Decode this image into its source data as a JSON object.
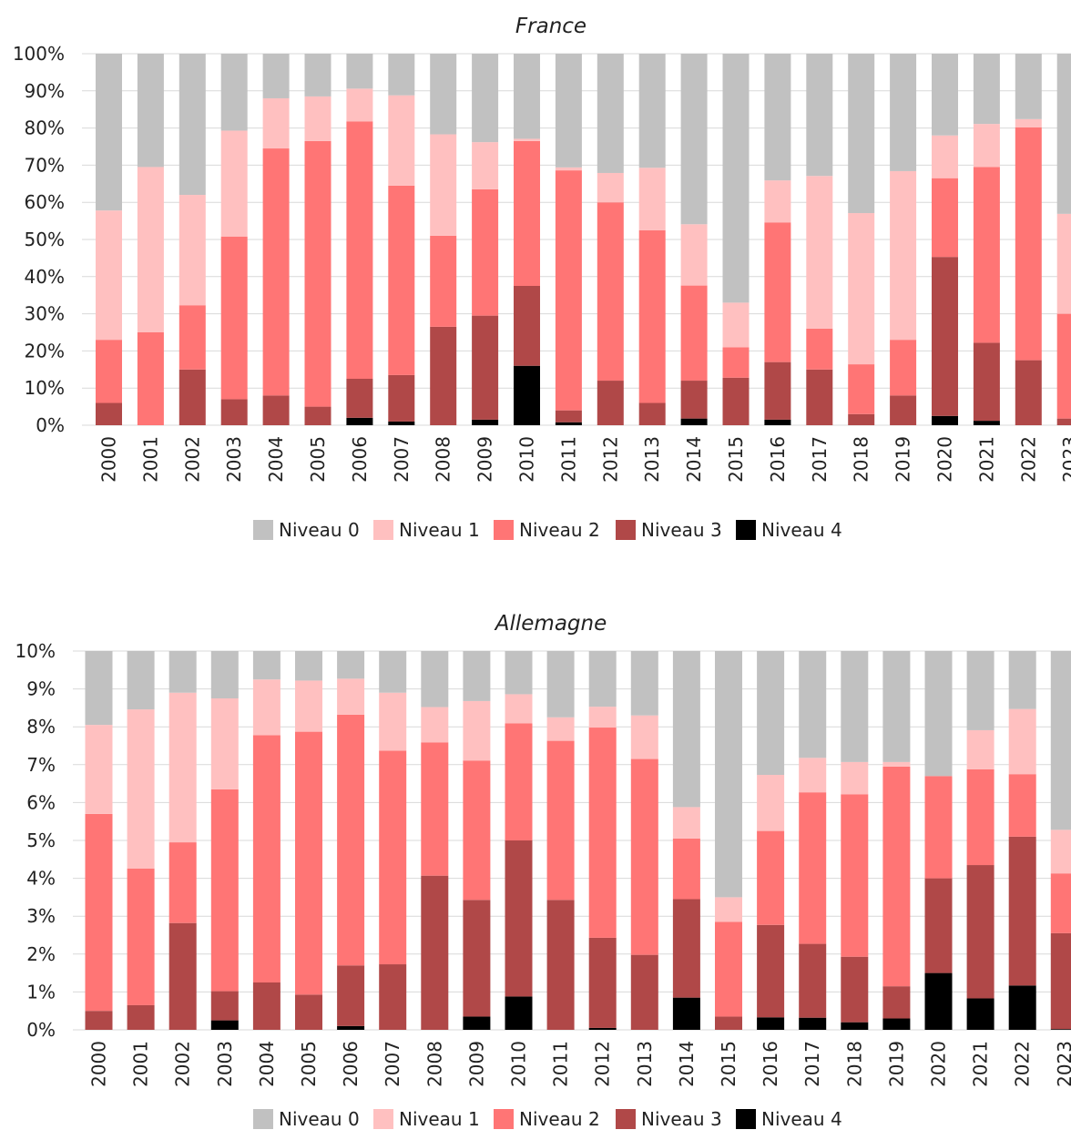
{
  "chart_data": [
    {
      "type": "bar",
      "stacked": true,
      "title": "France",
      "categories": [
        "2000",
        "2001",
        "2002",
        "2003",
        "2004",
        "2005",
        "2006",
        "2007",
        "2008",
        "2009",
        "2010",
        "2011",
        "2012",
        "2013",
        "2014",
        "2015",
        "2016",
        "2017",
        "2018",
        "2019",
        "2020",
        "2021",
        "2022",
        "2023"
      ],
      "ylim": [
        0,
        100
      ],
      "yticks": [
        "0%",
        "10%",
        "20%",
        "30%",
        "40%",
        "50%",
        "60%",
        "70%",
        "80%",
        "90%",
        "100%"
      ],
      "grid": true,
      "legend_position": "bottom",
      "series": [
        {
          "name": "Niveau 4",
          "color": "#000000",
          "values": [
            0,
            0,
            0,
            0,
            0,
            0,
            2,
            1,
            0,
            1.5,
            16,
            0.8,
            0,
            0,
            1.8,
            0,
            1.5,
            0,
            0,
            0,
            2.5,
            1.2,
            0,
            0
          ]
        },
        {
          "name": "Niveau 3",
          "color": "#b04848",
          "values": [
            6,
            0,
            15,
            7,
            8,
            5,
            10.5,
            12.5,
            26.5,
            28,
            21.5,
            3.2,
            12,
            6,
            10.2,
            12.8,
            15.5,
            15,
            3,
            8,
            42.8,
            21,
            17.5,
            1.8
          ]
        },
        {
          "name": "Niveau 2",
          "color": "#ff7575",
          "values": [
            17,
            25,
            17.3,
            43.8,
            66.5,
            71.5,
            69.3,
            51,
            24.5,
            34,
            39,
            64.6,
            48,
            46.5,
            25.6,
            8.2,
            37.6,
            11,
            13.4,
            15,
            21.2,
            47.3,
            62.7,
            28.2
          ]
        },
        {
          "name": "Niveau 1",
          "color": "#ffc0c0",
          "values": [
            34.8,
            44.5,
            29.7,
            28.5,
            13.5,
            12,
            8.8,
            24.3,
            27.3,
            12.7,
            0.6,
            0.8,
            7.9,
            16.8,
            16.5,
            12,
            11.3,
            41.1,
            40.7,
            45.4,
            11.5,
            11.6,
            2.2,
            26.9
          ]
        },
        {
          "name": "Niveau 0",
          "color": "#c1c1c1",
          "values": [
            42.2,
            30.5,
            38,
            20.7,
            12,
            11.5,
            9.4,
            11.2,
            21.7,
            23.8,
            22.9,
            30.6,
            32.1,
            30.7,
            45.9,
            67,
            34.1,
            32.9,
            42.9,
            31.6,
            22,
            18.9,
            17.6,
            43.1
          ]
        }
      ],
      "legend": [
        "Niveau 0",
        "Niveau 1",
        "Niveau 2",
        "Niveau 3",
        "Niveau 4"
      ]
    },
    {
      "type": "bar",
      "stacked": true,
      "title": "Allemagne",
      "categories": [
        "2000",
        "2001",
        "2002",
        "2003",
        "2004",
        "2005",
        "2006",
        "2007",
        "2008",
        "2009",
        "2010",
        "2011",
        "2012",
        "2013",
        "2014",
        "2015",
        "2016",
        "2017",
        "2018",
        "2019",
        "2020",
        "2021",
        "2022",
        "2023"
      ],
      "ylim": [
        0,
        10
      ],
      "yticks": [
        "0%",
        "1%",
        "2%",
        "3%",
        "4%",
        "5%",
        "6%",
        "7%",
        "8%",
        "9%",
        "10%"
      ],
      "grid": true,
      "legend_position": "bottom",
      "series": [
        {
          "name": "Niveau 4",
          "color": "#000000",
          "values": [
            0,
            0,
            0,
            0.25,
            0,
            0,
            0.1,
            0,
            0,
            0.35,
            0.88,
            0,
            0.05,
            0,
            0.85,
            0,
            0.33,
            0.32,
            0.2,
            0.3,
            1.5,
            0.83,
            1.17,
            0.02
          ]
        },
        {
          "name": "Niveau 3",
          "color": "#b04848",
          "values": [
            0.5,
            0.65,
            2.82,
            0.77,
            1.25,
            0.93,
            1.6,
            1.73,
            4.07,
            3.08,
            4.12,
            3.43,
            2.38,
            1.98,
            2.6,
            0.35,
            2.44,
            1.95,
            1.73,
            0.85,
            2.5,
            3.52,
            3.93,
            2.53
          ]
        },
        {
          "name": "Niveau 2",
          "color": "#ff7575",
          "values": [
            5.2,
            3.61,
            2.13,
            5.33,
            6.53,
            6.94,
            6.62,
            5.64,
            3.52,
            3.68,
            3.09,
            4.2,
            5.55,
            5.17,
            1.6,
            2.5,
            2.48,
            4.0,
            4.29,
            5.8,
            2.7,
            2.53,
            1.65,
            1.58
          ]
        },
        {
          "name": "Niveau 1",
          "color": "#ffc0c0",
          "values": [
            2.35,
            4.2,
            3.95,
            2.4,
            1.47,
            1.35,
            0.95,
            1.53,
            0.93,
            1.57,
            0.77,
            0.62,
            0.55,
            1.15,
            0.83,
            0.65,
            1.48,
            0.91,
            0.85,
            0.12,
            0,
            1.03,
            1.72,
            1.15
          ]
        },
        {
          "name": "Niveau 0",
          "color": "#c1c1c1",
          "values": [
            1.95,
            1.54,
            1.1,
            1.25,
            0.75,
            0.78,
            0.73,
            1.1,
            1.48,
            1.32,
            1.14,
            1.75,
            1.47,
            1.7,
            4.12,
            6.5,
            3.27,
            2.82,
            2.93,
            2.93,
            3.3,
            2.09,
            1.53,
            4.72
          ]
        }
      ],
      "legend": [
        "Niveau 0",
        "Niveau 1",
        "Niveau 2",
        "Niveau 3",
        "Niveau 4"
      ]
    }
  ]
}
